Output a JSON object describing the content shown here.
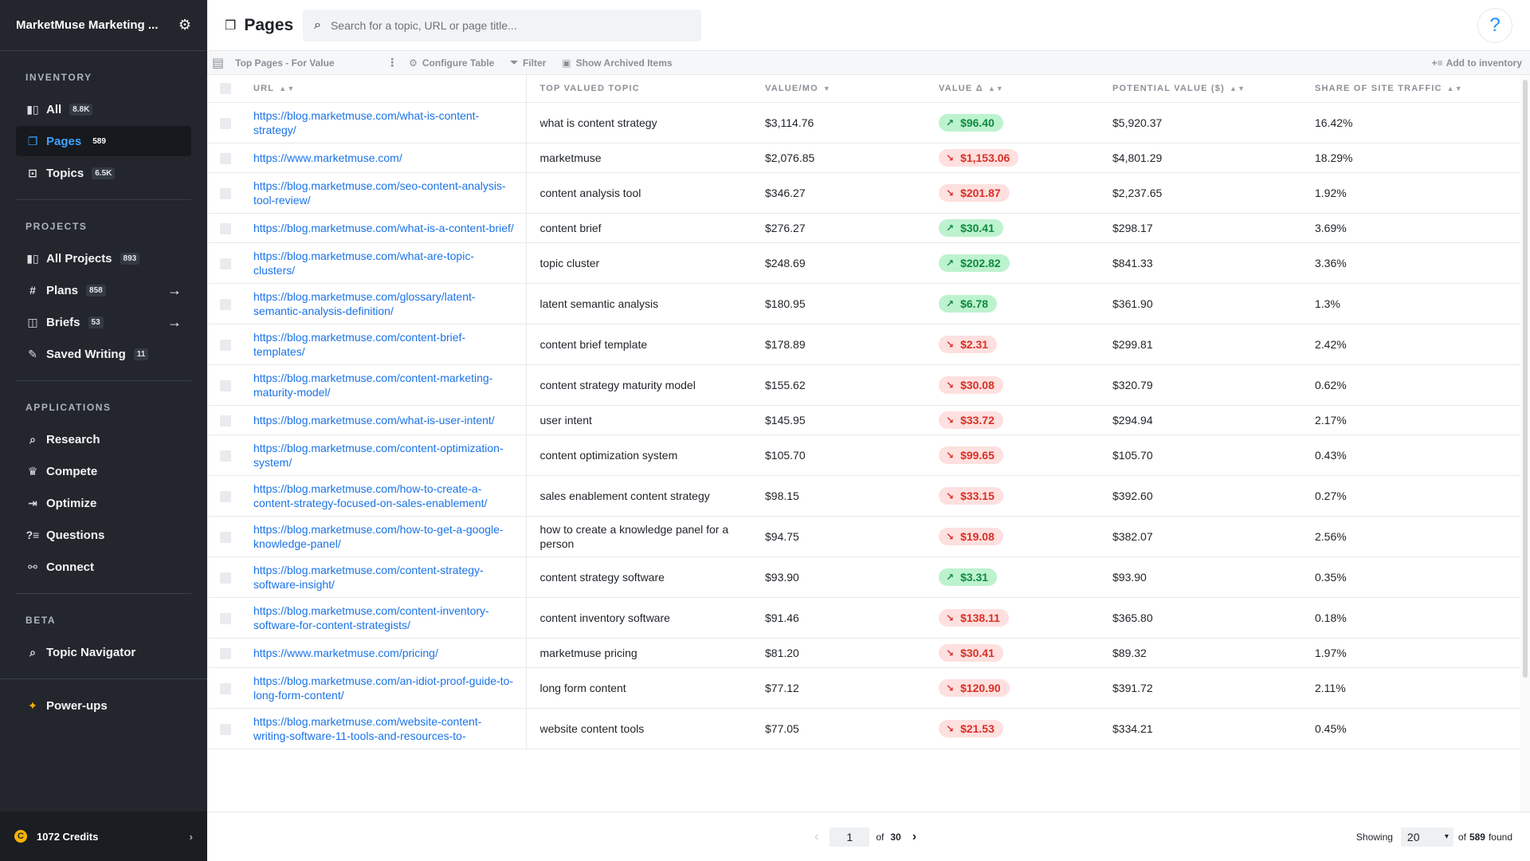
{
  "sidebar": {
    "title": "MarketMuse Marketing ...",
    "sections": {
      "inventory": "INVENTORY",
      "projects": "PROJECTS",
      "applications": "APPLICATIONS",
      "beta": "BETA"
    },
    "inventory_items": [
      {
        "label": "All",
        "count": "8.8K"
      },
      {
        "label": "Pages",
        "count": "589"
      },
      {
        "label": "Topics",
        "count": "6.5K"
      }
    ],
    "project_items": [
      {
        "label": "All Projects",
        "count": "893"
      },
      {
        "label": "Plans",
        "count": "858"
      },
      {
        "label": "Briefs",
        "count": "53"
      },
      {
        "label": "Saved Writing",
        "count": "11"
      }
    ],
    "application_items": [
      "Research",
      "Compete",
      "Optimize",
      "Questions",
      "Connect"
    ],
    "beta_items": [
      "Topic Navigator"
    ],
    "powerups": "Power-ups",
    "credits": "1072 Credits"
  },
  "header": {
    "title": "Pages",
    "search_placeholder": "Search for a topic, URL or page title...",
    "help": "?"
  },
  "toolbar": {
    "view": "Top Pages - For Value",
    "configure": "Configure Table",
    "filter": "Filter",
    "archived": "Show Archived Items",
    "add": "Add to inventory"
  },
  "table": {
    "columns": [
      "URL",
      "TOP VALUED TOPIC",
      "VALUE/MO",
      "VALUE Δ",
      "POTENTIAL VALUE ($)",
      "SHARE OF SITE TRAFFIC"
    ],
    "rows": [
      {
        "url": "https://blog.marketmuse.com/what-is-content-strategy/",
        "topic": "what is content strategy",
        "value": "$3,114.76",
        "delta": "$96.40",
        "dir": "up",
        "potential": "$5,920.37",
        "share": "16.42%"
      },
      {
        "url": "https://www.marketmuse.com/",
        "topic": "marketmuse",
        "value": "$2,076.85",
        "delta": "$1,153.06",
        "dir": "down",
        "potential": "$4,801.29",
        "share": "18.29%"
      },
      {
        "url": "https://blog.marketmuse.com/seo-content-analysis-tool-review/",
        "topic": "content analysis tool",
        "value": "$346.27",
        "delta": "$201.87",
        "dir": "down",
        "potential": "$2,237.65",
        "share": "1.92%"
      },
      {
        "url": "https://blog.marketmuse.com/what-is-a-content-brief/",
        "topic": "content brief",
        "value": "$276.27",
        "delta": "$30.41",
        "dir": "up",
        "potential": "$298.17",
        "share": "3.69%"
      },
      {
        "url": "https://blog.marketmuse.com/what-are-topic-clusters/",
        "topic": "topic cluster",
        "value": "$248.69",
        "delta": "$202.82",
        "dir": "up",
        "potential": "$841.33",
        "share": "3.36%"
      },
      {
        "url": "https://blog.marketmuse.com/glossary/latent-semantic-analysis-definition/",
        "topic": "latent semantic analysis",
        "value": "$180.95",
        "delta": "$6.78",
        "dir": "up",
        "potential": "$361.90",
        "share": "1.3%"
      },
      {
        "url": "https://blog.marketmuse.com/content-brief-templates/",
        "topic": "content brief template",
        "value": "$178.89",
        "delta": "$2.31",
        "dir": "down",
        "potential": "$299.81",
        "share": "2.42%"
      },
      {
        "url": "https://blog.marketmuse.com/content-marketing-maturity-model/",
        "topic": "content strategy maturity model",
        "value": "$155.62",
        "delta": "$30.08",
        "dir": "down",
        "potential": "$320.79",
        "share": "0.62%"
      },
      {
        "url": "https://blog.marketmuse.com/what-is-user-intent/",
        "topic": "user intent",
        "value": "$145.95",
        "delta": "$33.72",
        "dir": "down",
        "potential": "$294.94",
        "share": "2.17%"
      },
      {
        "url": "https://blog.marketmuse.com/content-optimization-system/",
        "topic": "content optimization system",
        "value": "$105.70",
        "delta": "$99.65",
        "dir": "down",
        "potential": "$105.70",
        "share": "0.43%"
      },
      {
        "url": "https://blog.marketmuse.com/how-to-create-a-content-strategy-focused-on-sales-enablement/",
        "topic": "sales enablement content strategy",
        "value": "$98.15",
        "delta": "$33.15",
        "dir": "down",
        "potential": "$392.60",
        "share": "0.27%"
      },
      {
        "url": "https://blog.marketmuse.com/how-to-get-a-google-knowledge-panel/",
        "topic": "how to create a knowledge panel for a person",
        "value": "$94.75",
        "delta": "$19.08",
        "dir": "down",
        "potential": "$382.07",
        "share": "2.56%"
      },
      {
        "url": "https://blog.marketmuse.com/content-strategy-software-insight/",
        "topic": "content strategy software",
        "value": "$93.90",
        "delta": "$3.31",
        "dir": "up",
        "potential": "$93.90",
        "share": "0.35%"
      },
      {
        "url": "https://blog.marketmuse.com/content-inventory-software-for-content-strategists/",
        "topic": "content inventory software",
        "value": "$91.46",
        "delta": "$138.11",
        "dir": "down",
        "potential": "$365.80",
        "share": "0.18%"
      },
      {
        "url": "https://www.marketmuse.com/pricing/",
        "topic": "marketmuse pricing",
        "value": "$81.20",
        "delta": "$30.41",
        "dir": "down",
        "potential": "$89.32",
        "share": "1.97%"
      },
      {
        "url": "https://blog.marketmuse.com/an-idiot-proof-guide-to-long-form-content/",
        "topic": "long form content",
        "value": "$77.12",
        "delta": "$120.90",
        "dir": "down",
        "potential": "$391.72",
        "share": "2.11%"
      },
      {
        "url": "https://blog.marketmuse.com/website-content-writing-software-11-tools-and-resources-to-",
        "topic": "website content tools",
        "value": "$77.05",
        "delta": "$21.53",
        "dir": "down",
        "potential": "$334.21",
        "share": "0.45%"
      }
    ]
  },
  "pagination": {
    "page": "1",
    "of": "of",
    "total_pages": "30",
    "showing": "Showing",
    "per_page": "20",
    "of_found": "of",
    "found_count": "589",
    "found": "found"
  },
  "colors": {
    "sidebar_bg": "#23272d",
    "accent": "#3ea2ff",
    "link": "#1a73e8",
    "up_bg": "#bdf2cf",
    "up_fg": "#0f8a3f",
    "down_bg": "#fde0df",
    "down_fg": "#d93025"
  }
}
